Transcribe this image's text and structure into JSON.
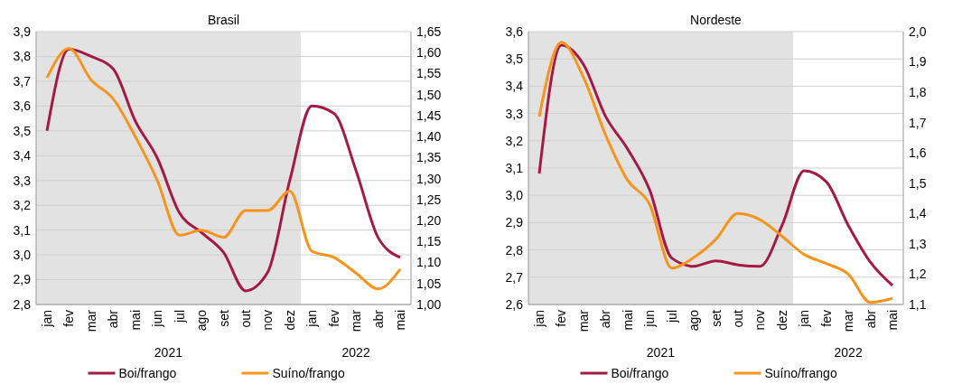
{
  "chart_data": [
    {
      "type": "line",
      "title": "Brasil",
      "categories": [
        "jan",
        "fev",
        "mar",
        "abr",
        "mai",
        "jun",
        "jul",
        "ago",
        "set",
        "out",
        "nov",
        "dez",
        "jan",
        "fev",
        "mar",
        "abr",
        "mai"
      ],
      "annotations": [
        "2021",
        "2022"
      ],
      "series": [
        {
          "name": "Boi/frango",
          "color": "#a31a45",
          "values": [
            3.5,
            3.83,
            3.8,
            3.75,
            3.54,
            3.39,
            3.17,
            3.09,
            3.01,
            2.855,
            2.93,
            3.3,
            3.6,
            3.57,
            3.34,
            3.07,
            2.99
          ]
        },
        {
          "name": "Suíno/frango",
          "color": "#f7941d",
          "axis": "y2",
          "values": [
            1.54,
            1.61,
            1.535,
            1.49,
            1.4,
            1.295,
            1.165,
            1.177,
            1.16,
            1.224,
            1.224,
            1.27,
            1.127,
            1.112,
            1.075,
            1.037,
            1.084
          ]
        }
      ],
      "ylim": [
        2.8,
        3.9
      ],
      "yticks": [
        {
          "value": 2.8,
          "label": "2,8"
        },
        {
          "value": 2.9,
          "label": "2,9"
        },
        {
          "value": 3.0,
          "label": "3,0"
        },
        {
          "value": 3.1,
          "label": "3,1"
        },
        {
          "value": 3.2,
          "label": "3,2"
        },
        {
          "value": 3.3,
          "label": "3,3"
        },
        {
          "value": 3.4,
          "label": "3,4"
        },
        {
          "value": 3.5,
          "label": "3,5"
        },
        {
          "value": 3.6,
          "label": "3,6"
        },
        {
          "value": 3.7,
          "label": "3,7"
        },
        {
          "value": 3.8,
          "label": "3,8"
        },
        {
          "value": 3.9,
          "label": "3,9"
        }
      ],
      "y2lim": [
        1.0,
        1.65
      ],
      "y2ticks": [
        {
          "value": 1.0,
          "label": "1,00"
        },
        {
          "value": 1.05,
          "label": "1,05"
        },
        {
          "value": 1.1,
          "label": "1,10"
        },
        {
          "value": 1.15,
          "label": "1,15"
        },
        {
          "value": 1.2,
          "label": "1,20"
        },
        {
          "value": 1.25,
          "label": "1,25"
        },
        {
          "value": 1.3,
          "label": "1,30"
        },
        {
          "value": 1.35,
          "label": "1,35"
        },
        {
          "value": 1.4,
          "label": "1,40"
        },
        {
          "value": 1.45,
          "label": "1,45"
        },
        {
          "value": 1.5,
          "label": "1,50"
        },
        {
          "value": 1.55,
          "label": "1,55"
        },
        {
          "value": 1.6,
          "label": "1,60"
        },
        {
          "value": 1.65,
          "label": "1,65"
        }
      ],
      "bands": [
        {
          "axis": "x",
          "from": "jan",
          "to": "dez",
          "color": "#e2e2e2"
        }
      ],
      "grid": "y",
      "legend": "bottom",
      "marker": "none",
      "line_style": "solid"
    },
    {
      "type": "line",
      "title": "Nordeste",
      "categories": [
        "jan",
        "fev",
        "mar",
        "abr",
        "mai",
        "jun",
        "jul",
        "ago",
        "set",
        "out",
        "nov",
        "dez",
        "jan",
        "fev",
        "mar",
        "abr",
        "mai"
      ],
      "annotations": [
        "2021",
        "2022"
      ],
      "series": [
        {
          "name": "Boi/frango",
          "color": "#a31a45",
          "values": [
            3.08,
            3.55,
            3.48,
            3.29,
            3.17,
            3.02,
            2.77,
            2.74,
            2.76,
            2.745,
            2.74,
            2.89,
            3.09,
            3.05,
            2.89,
            2.755,
            2.67
          ]
        },
        {
          "name": "Suíno/frango",
          "color": "#f7941d",
          "axis": "y2",
          "values": [
            1.72,
            1.965,
            1.85,
            1.66,
            1.51,
            1.43,
            1.22,
            1.255,
            1.315,
            1.4,
            1.38,
            1.325,
            1.265,
            1.235,
            1.2,
            1.107,
            1.12
          ]
        }
      ],
      "ylim": [
        2.6,
        3.6
      ],
      "yticks": [
        {
          "value": 2.6,
          "label": "2,6"
        },
        {
          "value": 2.7,
          "label": "2,7"
        },
        {
          "value": 2.8,
          "label": "2,8"
        },
        {
          "value": 2.9,
          "label": "2,9"
        },
        {
          "value": 3.0,
          "label": "3,0"
        },
        {
          "value": 3.1,
          "label": "3,1"
        },
        {
          "value": 3.2,
          "label": "3,2"
        },
        {
          "value": 3.3,
          "label": "3,3"
        },
        {
          "value": 3.4,
          "label": "3,4"
        },
        {
          "value": 3.5,
          "label": "3,5"
        },
        {
          "value": 3.6,
          "label": "3,6"
        }
      ],
      "y2lim": [
        1.1,
        2.0
      ],
      "y2ticks": [
        {
          "value": 1.1,
          "label": "1,1"
        },
        {
          "value": 1.2,
          "label": "1,2"
        },
        {
          "value": 1.3,
          "label": "1,3"
        },
        {
          "value": 1.4,
          "label": "1,4"
        },
        {
          "value": 1.5,
          "label": "1,5"
        },
        {
          "value": 1.6,
          "label": "1,6"
        },
        {
          "value": 1.7,
          "label": "1,7"
        },
        {
          "value": 1.8,
          "label": "1,8"
        },
        {
          "value": 1.9,
          "label": "1,9"
        },
        {
          "value": 2.0,
          "label": "2,0"
        }
      ],
      "bands": [
        {
          "axis": "x",
          "from": "jan",
          "to": "dez",
          "color": "#e2e2e2"
        }
      ],
      "grid": "y",
      "legend": "bottom",
      "marker": "none",
      "line_style": "solid"
    }
  ]
}
